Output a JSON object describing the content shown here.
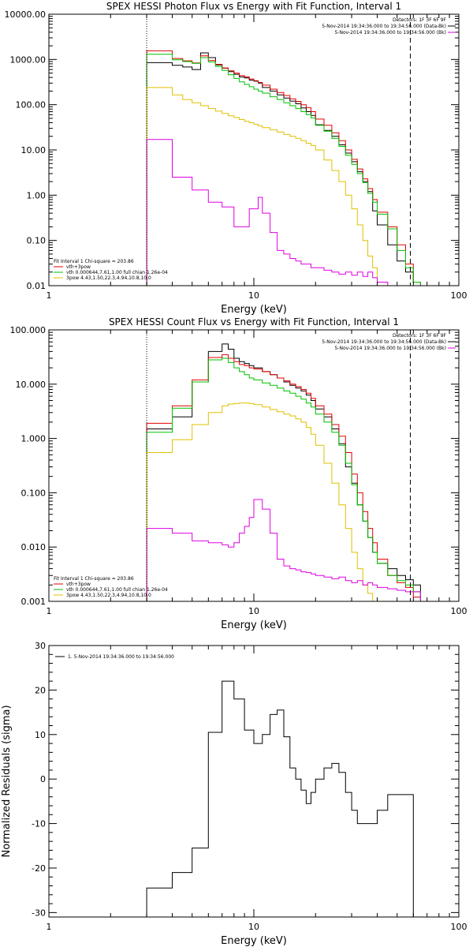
{
  "chart_data": [
    {
      "type": "line",
      "title": "SPEX HESSI Photon Flux vs Energy with Fit Function, Interval 1",
      "xlabel": "Energy (keV)",
      "ylabel": "",
      "xscale": "log",
      "yscale": "log",
      "xlim": [
        1,
        100
      ],
      "ylim": [
        0.01,
        10000
      ],
      "x_tick_labels": [
        "1",
        "10",
        "100"
      ],
      "y_tick_labels": [
        "0.01",
        "0.10",
        "1.00",
        "10.00",
        "100.00",
        "1000.00",
        "10000.00"
      ],
      "vertical_lines": [
        {
          "x": 3,
          "style": "dotted"
        },
        {
          "x": 58,
          "style": "dashed"
        }
      ],
      "legend_top_right": [
        "Detectors: 1F 3F 6F 9F",
        "5-Nov-2014 19:34:36.000 to 19:34:56.000 (Data-Bk)",
        "5-Nov-2014 19:34:36.000 to 19:34:56.000 (Bk)"
      ],
      "legend_bottom_left": [
        "Fit Interval 1    Chi-square = 203.86",
        "vth+3pow",
        "vth 0.000644,7.61,1.00  full chian 1.26e-04",
        "3pow 4.43,1.50,22.3,4.94,10.8,10.0"
      ],
      "legend_grid": "off",
      "bin_edges": [
        3,
        3.5,
        4,
        4.5,
        5,
        5.5,
        6,
        6.5,
        7,
        7.5,
        8,
        8.5,
        9,
        9.5,
        10,
        10.5,
        11,
        12,
        13,
        14,
        15,
        16,
        17,
        18,
        19,
        20,
        22,
        24,
        26,
        28,
        30,
        32,
        34,
        36,
        38,
        40,
        45,
        50,
        55,
        60,
        65
      ],
      "series": [
        {
          "name": "5-Nov-2014 19:34:36.000 to 19:34:56.000 (Data-Bk)",
          "color": "#000000",
          "values": [
            850,
            850,
            740,
            680,
            600,
            1400,
            1100,
            760,
            640,
            540,
            470,
            410,
            390,
            350,
            330,
            300,
            240,
            200,
            165,
            140,
            120,
            105,
            85,
            70,
            58,
            36,
            27,
            20,
            13,
            8.5,
            5.5,
            3.3,
            2.0,
            1.2,
            0.45,
            0.22,
            0.08,
            0.035,
            0.02,
            0.012
          ]
        },
        {
          "name": "vth+3pow",
          "color": "#e00000",
          "values": [
            1550,
            1550,
            1050,
            930,
            840,
            1200,
            950,
            780,
            650,
            560,
            500,
            440,
            410,
            370,
            340,
            310,
            270,
            220,
            185,
            160,
            135,
            118,
            100,
            86,
            70,
            48,
            35,
            24,
            16,
            10,
            6.2,
            3.8,
            2.3,
            1.4,
            0.8,
            0.42,
            0.2,
            0.08,
            0.03,
            0.012
          ]
        },
        {
          "name": "vth 0.000644,7.61,1.00  full chian 1.26e-04",
          "color": "#00c000",
          "values": [
            1300,
            1300,
            980,
            900,
            820,
            1100,
            880,
            700,
            570,
            460,
            380,
            320,
            280,
            250,
            220,
            200,
            180,
            150,
            130,
            110,
            95,
            82,
            70,
            60,
            51,
            35,
            26,
            18,
            12,
            7.6,
            4.8,
            3.0,
            1.9,
            1.1,
            0.7,
            0.38,
            0.18,
            0.06,
            0.025,
            0.012
          ]
        },
        {
          "name": "3pow 4.43,1.50,22.3,4.94,10.8,10.0",
          "color": "#e0c000",
          "values": [
            240,
            240,
            165,
            130,
            110,
            95,
            82,
            72,
            64,
            57,
            52,
            47,
            43,
            40,
            37,
            34,
            31,
            28,
            25,
            22,
            20,
            18,
            16,
            14,
            12.5,
            10,
            6.0,
            3.5,
            2.0,
            1.0,
            0.5,
            0.22,
            0.1,
            0.045,
            0.025,
            0.012,
            0.009,
            0.008,
            0.008,
            0.008
          ]
        },
        {
          "name": "5-Nov-2014 19:34:36.000 to 19:34:56.000 (Bk)",
          "color": "#e000e0",
          "values": [
            17,
            17,
            2.5,
            2.5,
            1.3,
            1.3,
            0.7,
            0.7,
            0.55,
            0.55,
            0.2,
            0.2,
            0.2,
            0.5,
            0.5,
            0.9,
            0.4,
            0.15,
            0.06,
            0.05,
            0.04,
            0.035,
            0.03,
            0.03,
            0.025,
            0.025,
            0.022,
            0.02,
            0.018,
            0.02,
            0.017,
            0.02,
            0.016,
            0.02,
            0.015,
            0.012,
            0.01,
            0.009,
            0.008,
            0.008
          ]
        }
      ]
    },
    {
      "type": "line",
      "title": "SPEX HESSI Count Flux vs Energy with Fit Function, Interval 1",
      "xlabel": "Energy (keV)",
      "ylabel": "",
      "xscale": "log",
      "yscale": "log",
      "xlim": [
        1,
        100
      ],
      "ylim": [
        0.001,
        100
      ],
      "x_tick_labels": [
        "1",
        "10",
        "100"
      ],
      "y_tick_labels": [
        "0.001",
        "0.010",
        "0.100",
        "1.000",
        "10.000",
        "100.000"
      ],
      "vertical_lines": [
        {
          "x": 3,
          "style": "dotted"
        },
        {
          "x": 58,
          "style": "dashed"
        }
      ],
      "legend_top_right": [
        "Detectors: 1F 3F 6F 9F",
        "5-Nov-2014 19:34:36.000 to 19:34:56.000 (Data-Bk)",
        "5-Nov-2014 19:34:36.000 to 19:34:56.000 (Bk)"
      ],
      "legend_bottom_left": [
        "Fit Interval 1    Chi-square = 203.86",
        "vth+3pow",
        "vth 0.000644,7.61,1.00  full chian 1.26e-04",
        "3pow 4.43,1.50,22.3,4.94,10.8,10.0"
      ],
      "bin_edges": [
        3,
        4,
        5,
        6,
        7,
        7.5,
        8,
        8.5,
        9,
        9.5,
        10,
        11,
        12,
        13,
        14,
        15,
        16,
        17,
        18,
        19,
        20,
        22,
        24,
        26,
        28,
        30,
        32,
        34,
        36,
        38,
        40,
        45,
        50,
        55,
        60,
        65
      ],
      "series": [
        {
          "name": "5-Nov-2014 19:34:36.000 to 19:34:56.000 (Data-Bk)",
          "color": "#000000",
          "values": [
            1.5,
            2.5,
            11,
            40,
            55,
            44,
            30,
            26,
            24,
            22,
            20,
            17,
            15,
            13,
            11,
            9.5,
            8.5,
            7.5,
            6.3,
            5,
            3.5,
            2.5,
            1.5,
            0.8,
            0.3,
            0.15,
            0.06,
            0.03,
            0.015,
            0.008,
            0.005,
            0.004,
            0.003,
            0.0025,
            0.002
          ]
        },
        {
          "name": "vth+3pow",
          "color": "#e00000",
          "values": [
            1.9,
            4.0,
            12,
            31,
            35,
            30,
            26,
            23,
            22,
            20,
            19,
            17,
            15,
            13,
            11.5,
            10,
            9,
            8,
            6.8,
            5.5,
            4,
            2.8,
            1.8,
            1.1,
            0.55,
            0.22,
            0.1,
            0.045,
            0.022,
            0.012,
            0.006,
            0.003,
            0.0022,
            0.0018,
            0.0012
          ]
        },
        {
          "name": "vth 0.000644,7.61,1.00  full chian 1.26e-04",
          "color": "#00c000",
          "values": [
            1.3,
            3.6,
            11,
            28,
            30,
            25,
            20,
            17,
            15,
            13,
            12,
            10.5,
            9.5,
            8.5,
            7.5,
            6.8,
            6,
            5.3,
            4.5,
            3.8,
            2.8,
            2.0,
            1.3,
            0.75,
            0.35,
            0.14,
            0.06,
            0.03,
            0.015,
            0.008,
            0.005,
            0.003,
            0.0024,
            0.002,
            0.0015
          ]
        },
        {
          "name": "3pow 4.43,1.50,22.3,4.94,10.8,10.0",
          "color": "#e0c000",
          "values": [
            0.55,
            0.95,
            1.8,
            3.0,
            4.0,
            4.3,
            4.4,
            4.5,
            4.5,
            4.4,
            4.2,
            3.8,
            3.4,
            3.1,
            2.8,
            2.6,
            2.3,
            2.0,
            1.6,
            1.2,
            0.75,
            0.35,
            0.15,
            0.06,
            0.022,
            0.008,
            0.004,
            0.002,
            0.0014,
            0.001,
            0.001,
            0.001,
            0.001,
            0.001,
            0.001
          ]
        },
        {
          "name": "5-Nov-2014 19:34:36.000 to 19:34:56.000 (Bk)",
          "color": "#e000e0",
          "values": [
            0.022,
            0.018,
            0.013,
            0.012,
            0.011,
            0.01,
            0.012,
            0.018,
            0.024,
            0.035,
            0.075,
            0.05,
            0.018,
            0.006,
            0.0045,
            0.004,
            0.0038,
            0.0035,
            0.0034,
            0.0032,
            0.003,
            0.0028,
            0.0026,
            0.0028,
            0.0024,
            0.0022,
            0.0024,
            0.002,
            0.0022,
            0.002,
            0.0018,
            0.0017,
            0.0016,
            0.0015,
            0.0015
          ]
        }
      ]
    },
    {
      "type": "line",
      "title": "",
      "xlabel": "Energy (keV)",
      "ylabel": "Normalized Residuals (sigma)",
      "xscale": "log",
      "yscale": "linear",
      "xlim": [
        1,
        100
      ],
      "ylim": [
        -31,
        30
      ],
      "x_tick_labels": [
        "1",
        "10",
        "100"
      ],
      "y_tick_labels": [
        "30",
        "20",
        "10",
        "0",
        "-10",
        "-20",
        "-30"
      ],
      "legend": [
        "1.  5-Nov-2014 19:34:36.000 to 19:34:56.000"
      ],
      "bin_edges": [
        3,
        3.5,
        4,
        4.5,
        5,
        5.5,
        6,
        6.5,
        7,
        7.5,
        8,
        8.5,
        9,
        9.5,
        10,
        10.5,
        11,
        12,
        13,
        14,
        15,
        16,
        17,
        18,
        19,
        20,
        22,
        24,
        26,
        28,
        30,
        32,
        34,
        36,
        38,
        40,
        45,
        50,
        55,
        60
      ],
      "series": [
        {
          "name": "1.  5-Nov-2014 19:34:36.000 to 19:34:56.000",
          "color": "#000000",
          "values": [
            -24.5,
            -24.5,
            -21,
            -21,
            -15.5,
            -15.5,
            10.5,
            10.5,
            22,
            22,
            18,
            18,
            11,
            11,
            8,
            8,
            10,
            14.5,
            15.5,
            9.5,
            2.5,
            0,
            -2.5,
            -5.5,
            -3,
            0,
            2.5,
            3.5,
            1.5,
            -3,
            -7,
            -10,
            -10,
            -10,
            -10,
            -7,
            -3.5,
            -3.5,
            -3.5
          ]
        }
      ]
    }
  ]
}
